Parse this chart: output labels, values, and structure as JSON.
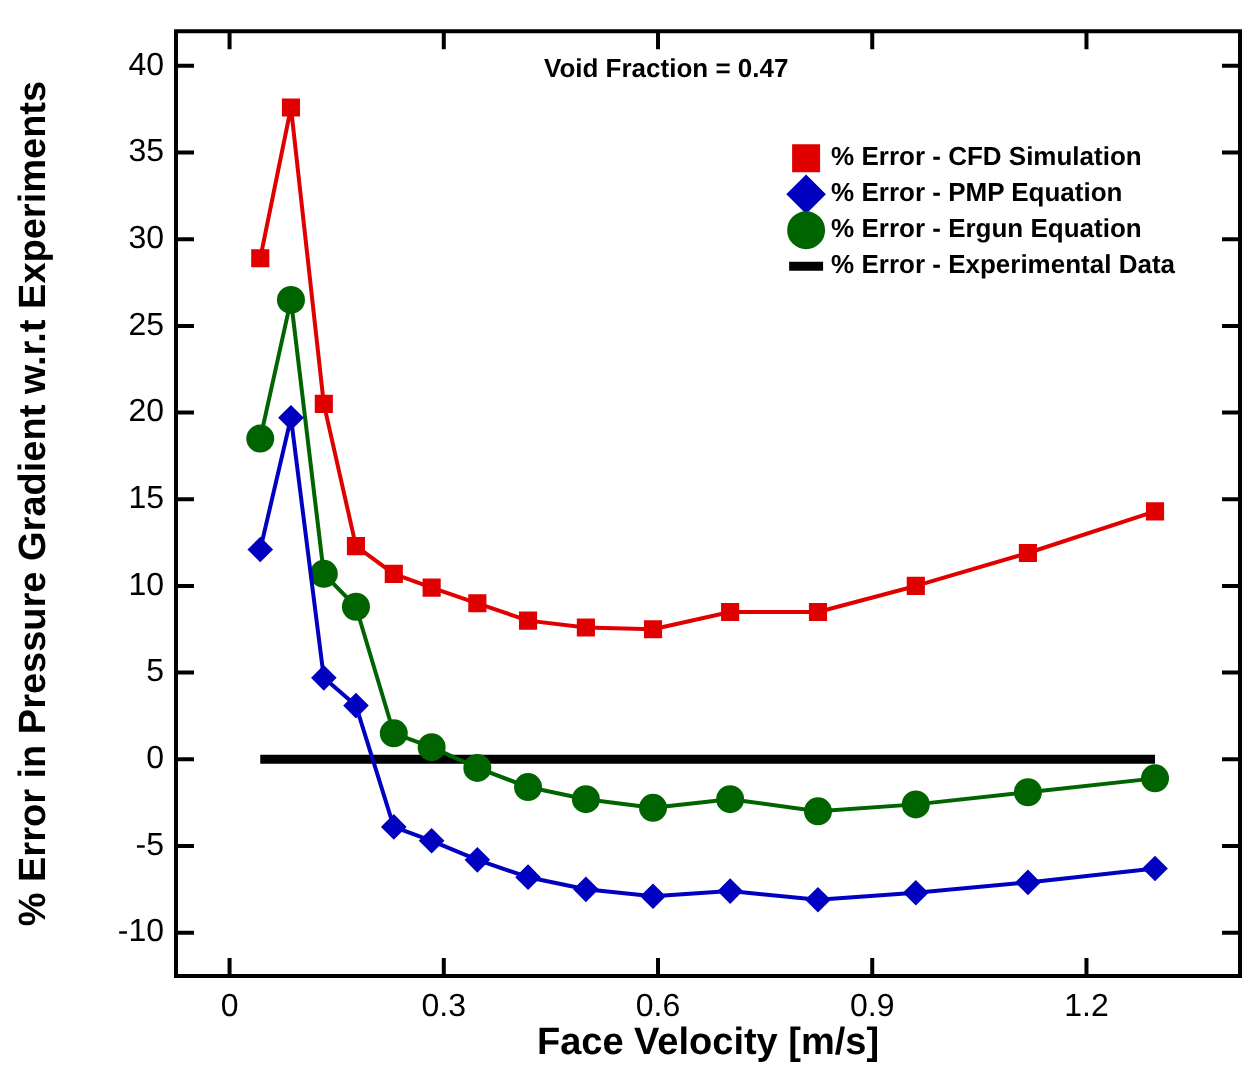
{
  "chart_data": {
    "type": "line",
    "xlabel": "Face Velocity [m/s]",
    "ylabel": "% Error in Pressure Gradient w.r.t Experiments",
    "annotations": [
      "Void Fraction = 0.47"
    ],
    "x": [
      0.043,
      0.086,
      0.132,
      0.177,
      0.23,
      0.283,
      0.347,
      0.418,
      0.499,
      0.593,
      0.701,
      0.824,
      0.961,
      1.118,
      1.296
    ],
    "series": [
      {
        "name": "% Error - CFD Simulation",
        "color": "#e00000",
        "marker": "square",
        "values": [
          28.9,
          37.6,
          20.5,
          12.3,
          10.7,
          9.9,
          9.0,
          8.0,
          7.6,
          7.5,
          8.5,
          8.5,
          10.0,
          11.9,
          14.3
        ]
      },
      {
        "name": "% Error - PMP Equation",
        "color": "#0000c0",
        "marker": "diamond",
        "values": [
          12.1,
          19.7,
          4.7,
          3.1,
          -3.9,
          -4.7,
          -5.8,
          -6.8,
          -7.5,
          -7.9,
          -7.6,
          -8.1,
          -7.7,
          -7.1,
          -6.3
        ]
      },
      {
        "name": "% Error - Ergun Equation",
        "color": "#006400",
        "marker": "circle",
        "values": [
          18.5,
          26.5,
          10.7,
          8.8,
          1.5,
          0.7,
          -0.5,
          -1.6,
          -2.3,
          -2.8,
          -2.3,
          -3.0,
          -2.6,
          -1.9,
          -1.1
        ]
      },
      {
        "name": "% Error - Experimental Data",
        "color": "#000000",
        "marker": "none",
        "values": [
          0,
          0,
          0,
          0,
          0,
          0,
          0,
          0,
          0,
          0,
          0,
          0,
          0,
          0,
          0
        ]
      }
    ],
    "xlim": [
      -0.075,
      1.415
    ],
    "xticks": [
      0,
      0.3,
      0.6,
      0.9,
      1.2
    ],
    "ylim": [
      -12.5,
      42
    ],
    "yticks": [
      -10,
      -5,
      0,
      5,
      10,
      15,
      20,
      25,
      30,
      35,
      40
    ],
    "legend": "top right",
    "grid": false,
    "line_style": "solid"
  }
}
